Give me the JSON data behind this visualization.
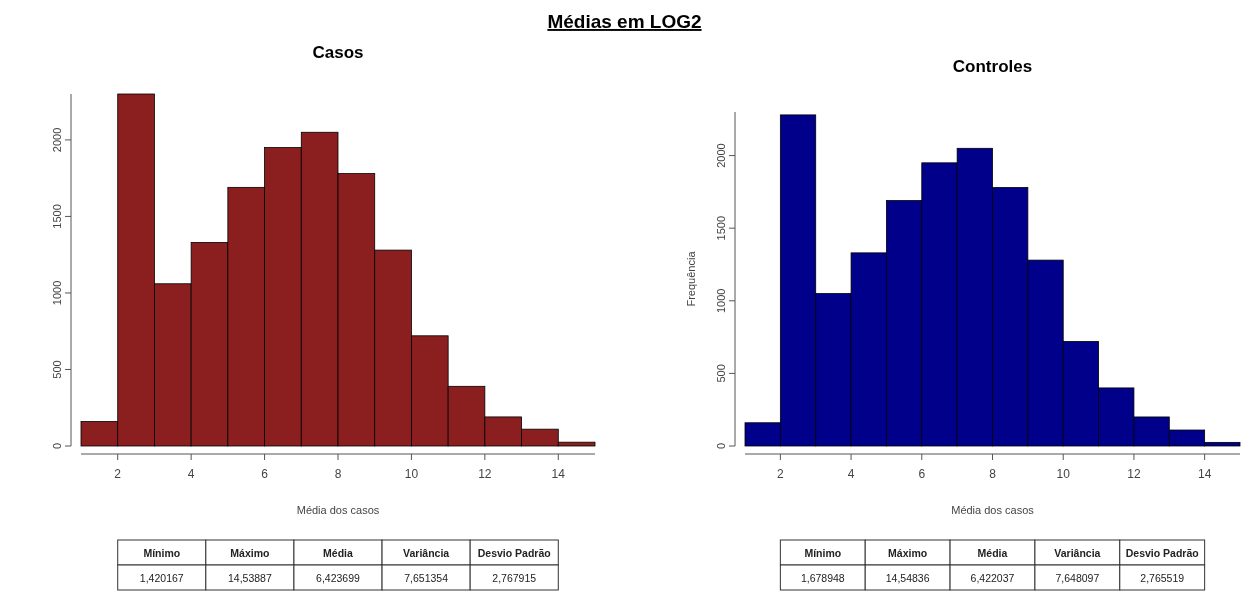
{
  "chart_data": [
    {
      "type": "other",
      "title": "Médias em LOG2"
    },
    {
      "type": "histogram",
      "title": "Casos",
      "xlabel": "Média dos casos",
      "color": "#8b1f1f",
      "bins": [
        1,
        2,
        3,
        4,
        5,
        6,
        7,
        8,
        9,
        10,
        11,
        12,
        13,
        14,
        15
      ],
      "values": [
        160,
        2300,
        1060,
        1330,
        1690,
        1950,
        2050,
        1780,
        1280,
        720,
        390,
        190,
        110,
        25
      ],
      "xlim": [
        1,
        15
      ],
      "xticks": [
        2,
        4,
        6,
        8,
        10,
        12,
        14
      ],
      "ylim": [
        0,
        2300
      ],
      "yticks": [
        0,
        500,
        1000,
        1500,
        2000
      ],
      "annotations": [
        "Mínimo",
        "Máximo",
        "Média",
        "Variância",
        "Desvio Padrão",
        "1,420167",
        "14,53887",
        "6,423699",
        "7,651354",
        "2,767915"
      ]
    },
    {
      "type": "histogram",
      "title": "Controles",
      "xlabel": "Média dos casos",
      "ylabel": "Frequência",
      "color": "#00008b",
      "bins": [
        1,
        2,
        3,
        4,
        5,
        6,
        7,
        8,
        9,
        10,
        11,
        12,
        13,
        14,
        15
      ],
      "values": [
        160,
        2280,
        1050,
        1330,
        1690,
        1950,
        2050,
        1780,
        1280,
        720,
        400,
        200,
        110,
        25
      ],
      "xlim": [
        1,
        15
      ],
      "xticks": [
        2,
        4,
        6,
        8,
        10,
        12,
        14
      ],
      "ylim": [
        0,
        2300
      ],
      "yticks": [
        0,
        500,
        1000,
        1500,
        2000
      ],
      "annotations": [
        "Mínimo",
        "Máximo",
        "Média",
        "Variância",
        "Desvio Padrão",
        "1,678948",
        "14,54836",
        "6,422037",
        "7,648097",
        "2,765519"
      ]
    }
  ]
}
